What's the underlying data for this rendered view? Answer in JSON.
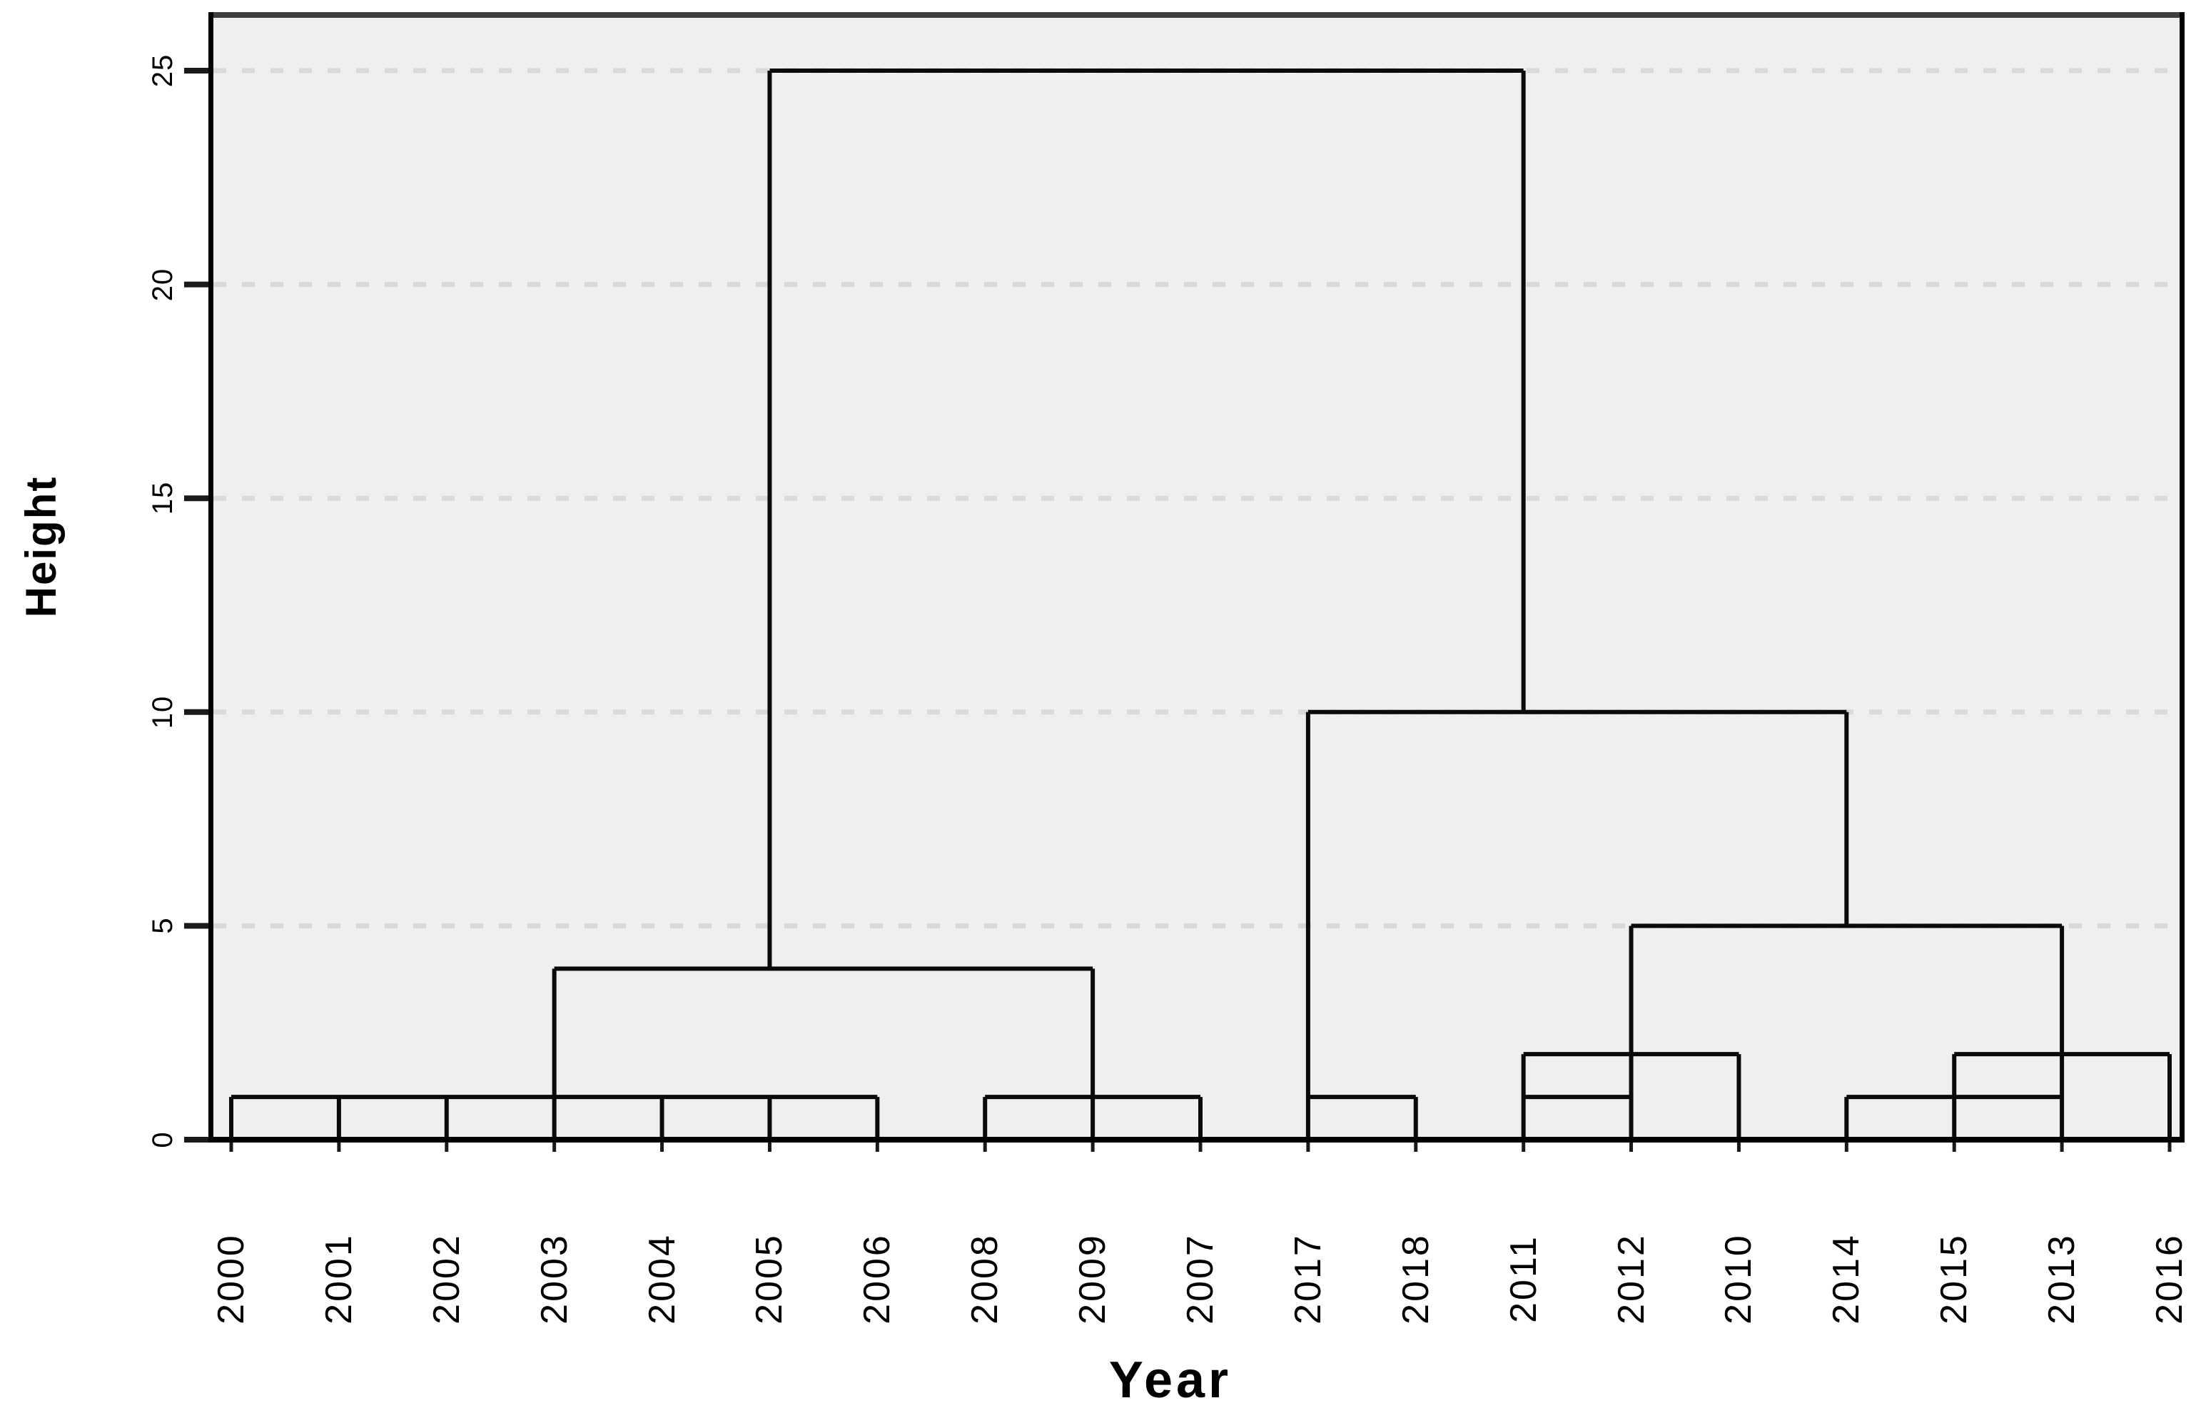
{
  "figure": {
    "background_color": "#ffffff",
    "plot_background_color": "#efefef",
    "dendrogram_line_color": "#0a0a0a",
    "gridline_color": "#d9d9d9",
    "frame_top_color": "#3f3f3f",
    "frame_color": "#000000",
    "tick_color": "#1a1a1a",
    "text_color": "#000000"
  },
  "chart_data": {
    "type": "dendrogram",
    "title": "",
    "xlabel": "Year",
    "ylabel": "Height",
    "legend": "none",
    "grid": "horizontal dashed gridlines at each y tick",
    "y_ticks": [
      0,
      5,
      10,
      15,
      20,
      25
    ],
    "ylim": [
      0,
      26.2
    ],
    "leaf_count": 19,
    "x_tick_labels": [
      "2000",
      "2001",
      "2002",
      "2003",
      "2004",
      "2005",
      "2006",
      "2008",
      "2009",
      "2007",
      "2017",
      "2018",
      "2011",
      "2012",
      "2010",
      "2014",
      "2015",
      "2013",
      "2016"
    ],
    "bars_comment": "horizontal merge bars: h = height value, x1/x2 = 1-based leaf positions spanned",
    "bars": [
      {
        "h": 1,
        "x1": 1,
        "x2": 7
      },
      {
        "h": 1,
        "x1": 8,
        "x2": 10
      },
      {
        "h": 4,
        "x1": 4,
        "x2": 9
      },
      {
        "h": 25,
        "x1": 6,
        "x2": 13
      },
      {
        "h": 1,
        "x1": 11,
        "x2": 12
      },
      {
        "h": 10,
        "x1": 11,
        "x2": 16
      },
      {
        "h": 1,
        "x1": 13,
        "x2": 14
      },
      {
        "h": 2,
        "x1": 13,
        "x2": 15
      },
      {
        "h": 5,
        "x1": 14,
        "x2": 18
      },
      {
        "h": 1,
        "x1": 16,
        "x2": 18
      },
      {
        "h": 2,
        "x1": 17,
        "x2": 19
      }
    ],
    "stems_comment": "vertical segments: x = 1-based leaf position, from height h1 to height h2",
    "stems": [
      {
        "x": 1,
        "h1": 0,
        "h2": 1
      },
      {
        "x": 2,
        "h1": 0,
        "h2": 1
      },
      {
        "x": 3,
        "h1": 0,
        "h2": 1
      },
      {
        "x": 4,
        "h1": 0,
        "h2": 4
      },
      {
        "x": 5,
        "h1": 0,
        "h2": 1
      },
      {
        "x": 6,
        "h1": 0,
        "h2": 1
      },
      {
        "x": 6,
        "h1": 4,
        "h2": 25
      },
      {
        "x": 7,
        "h1": 0,
        "h2": 1
      },
      {
        "x": 8,
        "h1": 0,
        "h2": 1
      },
      {
        "x": 9,
        "h1": 0,
        "h2": 4
      },
      {
        "x": 10,
        "h1": 0,
        "h2": 1
      },
      {
        "x": 11,
        "h1": 0,
        "h2": 10
      },
      {
        "x": 12,
        "h1": 0,
        "h2": 1
      },
      {
        "x": 13,
        "h1": 0,
        "h2": 2
      },
      {
        "x": 13,
        "h1": 10,
        "h2": 25
      },
      {
        "x": 14,
        "h1": 0,
        "h2": 5
      },
      {
        "x": 15,
        "h1": 0,
        "h2": 2
      },
      {
        "x": 16,
        "h1": 0,
        "h2": 1
      },
      {
        "x": 16,
        "h1": 5,
        "h2": 10
      },
      {
        "x": 17,
        "h1": 0,
        "h2": 2
      },
      {
        "x": 18,
        "h1": 0,
        "h2": 5
      },
      {
        "x": 19,
        "h1": 0,
        "h2": 2
      }
    ],
    "merge_summary": [
      "2000-2006 chained together at height 1",
      "2008, 2009, 2007 chained together at height 1",
      "left group joined at height 4 (stem above 2003 / 2009)",
      "2017-2018 joined at height 1",
      "2011-2012 joined at height 1; 2010 added at height 2",
      "2014, 2015(x), 2013 at height 1; 2015-2016 at height 2",
      "right subgroups joined at height 5 (2012 to 2013)",
      "middle/right joined at height 10 (2017 to 2014)",
      "final join of all at height 25 (2005 to 2011)"
    ]
  }
}
